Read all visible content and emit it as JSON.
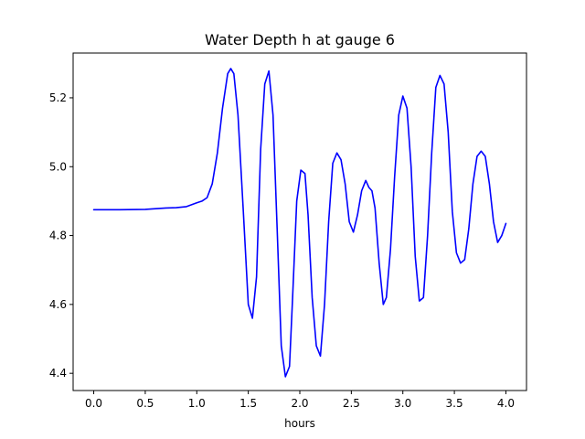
{
  "chart_data": {
    "type": "line",
    "title": "Water Depth h at gauge 6",
    "xlabel": "hours",
    "ylabel": "",
    "xlim": [
      -0.2,
      4.2
    ],
    "ylim": [
      4.35,
      5.33
    ],
    "xticks": [
      0.0,
      0.5,
      1.0,
      1.5,
      2.0,
      2.5,
      3.0,
      3.5,
      4.0
    ],
    "xtick_labels": [
      "0.0",
      "0.5",
      "1.0",
      "1.5",
      "2.0",
      "2.5",
      "3.0",
      "3.5",
      "4.0"
    ],
    "yticks": [
      4.4,
      4.6,
      4.8,
      5.0,
      5.2
    ],
    "ytick_labels": [
      "4.4",
      "4.6",
      "4.8",
      "5.0",
      "5.2"
    ],
    "grid": false,
    "line_color": "#0000ff",
    "series": [
      {
        "x": [
          0.0,
          0.25,
          0.5,
          0.6,
          0.7,
          0.8,
          0.9,
          1.0,
          1.05,
          1.1,
          1.15,
          1.2,
          1.25,
          1.3,
          1.33,
          1.36,
          1.4,
          1.45,
          1.5,
          1.54,
          1.58,
          1.62,
          1.66,
          1.7,
          1.74,
          1.78,
          1.82,
          1.86,
          1.9,
          1.93,
          1.97,
          2.01,
          2.05,
          2.08,
          2.12,
          2.16,
          2.2,
          2.24,
          2.28,
          2.32,
          2.36,
          2.4,
          2.44,
          2.48,
          2.52,
          2.56,
          2.6,
          2.64,
          2.67,
          2.7,
          2.73,
          2.77,
          2.81,
          2.84,
          2.88,
          2.92,
          2.96,
          3.0,
          3.04,
          3.08,
          3.12,
          3.16,
          3.2,
          3.24,
          3.28,
          3.32,
          3.36,
          3.4,
          3.44,
          3.48,
          3.52,
          3.56,
          3.6,
          3.64,
          3.68,
          3.72,
          3.76,
          3.8,
          3.84,
          3.88,
          3.92,
          3.96,
          4.0
        ],
        "y": [
          4.875,
          4.875,
          4.876,
          4.878,
          4.88,
          4.881,
          4.884,
          4.895,
          4.9,
          4.91,
          4.95,
          5.04,
          5.17,
          5.27,
          5.285,
          5.27,
          5.15,
          4.88,
          4.6,
          4.56,
          4.68,
          5.05,
          5.24,
          5.278,
          5.15,
          4.82,
          4.48,
          4.39,
          4.42,
          4.62,
          4.9,
          4.99,
          4.98,
          4.86,
          4.62,
          4.48,
          4.45,
          4.6,
          4.84,
          5.01,
          5.04,
          5.02,
          4.95,
          4.84,
          4.81,
          4.86,
          4.93,
          4.96,
          4.94,
          4.93,
          4.88,
          4.72,
          4.6,
          4.62,
          4.76,
          4.97,
          5.15,
          5.205,
          5.17,
          5.0,
          4.74,
          4.61,
          4.62,
          4.8,
          5.04,
          5.23,
          5.265,
          5.24,
          5.1,
          4.87,
          4.75,
          4.72,
          4.73,
          4.82,
          4.95,
          5.03,
          5.045,
          5.03,
          4.95,
          4.84,
          4.78,
          4.8,
          4.835
        ]
      }
    ]
  }
}
